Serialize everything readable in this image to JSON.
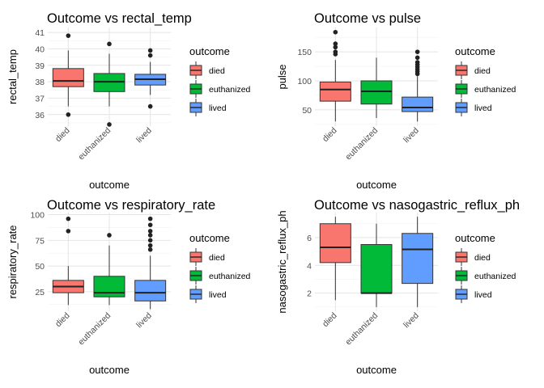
{
  "chart_data": [
    {
      "type": "boxplot",
      "title": "Outcome vs rectal_temp",
      "xlabel": "outcome",
      "ylabel": "rectal_temp",
      "categories": [
        "died",
        "euthanized",
        "lived"
      ],
      "ylim": [
        35.3,
        41.3
      ],
      "yticks": [
        36,
        37,
        38,
        39,
        40,
        41
      ],
      "legend_title": "outcome",
      "legend_placement": "right",
      "grid": true,
      "boxes": [
        {
          "category": "died",
          "lower_whisker": 36.5,
          "q1": 37.7,
          "median": 38.05,
          "q3": 38.8,
          "upper_whisker": 39.9,
          "outliers": [
            40.8,
            36.0
          ],
          "color": "#F8766D"
        },
        {
          "category": "euthanized",
          "lower_whisker": 36.5,
          "q1": 37.4,
          "median": 38.0,
          "q3": 38.5,
          "upper_whisker": 39.7,
          "outliers": [
            40.3,
            35.4
          ],
          "color": "#00BA38"
        },
        {
          "category": "lived",
          "lower_whisker": 37.2,
          "q1": 37.8,
          "median": 38.15,
          "q3": 38.45,
          "upper_whisker": 39.2,
          "outliers": [
            39.9,
            39.6,
            36.5
          ],
          "color": "#619CFF"
        }
      ]
    },
    {
      "type": "boxplot",
      "title": "Outcome vs pulse",
      "xlabel": "outcome",
      "ylabel": "pulse",
      "categories": [
        "died",
        "euthanized",
        "lived"
      ],
      "ylim": [
        22,
        192
      ],
      "yticks": [
        50,
        100,
        150
      ],
      "legend_title": "outcome",
      "legend_placement": "right",
      "grid": true,
      "boxes": [
        {
          "category": "died",
          "lower_whisker": 30,
          "q1": 65,
          "median": 85,
          "q3": 98,
          "upper_whisker": 136,
          "outliers": [
            184,
            164,
            158,
            150,
            146
          ],
          "color": "#F8766D"
        },
        {
          "category": "euthanized",
          "lower_whisker": 36,
          "q1": 60,
          "median": 82,
          "q3": 100,
          "upper_whisker": 140,
          "outliers": [],
          "color": "#00BA38"
        },
        {
          "category": "lived",
          "lower_whisker": 30,
          "q1": 47,
          "median": 54,
          "q3": 72,
          "upper_whisker": 108,
          "outliers": [
            150,
            140,
            132,
            128,
            124,
            120,
            116,
            112
          ],
          "color": "#619CFF"
        }
      ]
    },
    {
      "type": "boxplot",
      "title": "Outcome vs respiratory_rate",
      "xlabel": "outcome",
      "ylabel": "respiratory_rate",
      "categories": [
        "died",
        "euthanized",
        "lived"
      ],
      "ylim": [
        6,
        102
      ],
      "yticks": [
        25,
        50,
        75,
        100
      ],
      "legend_title": "outcome",
      "legend_placement": "right",
      "grid": true,
      "boxes": [
        {
          "category": "died",
          "lower_whisker": 12,
          "q1": 24,
          "median": 30,
          "q3": 36,
          "upper_whisker": 50,
          "outliers": [
            96,
            84
          ],
          "color": "#F8766D"
        },
        {
          "category": "euthanized",
          "lower_whisker": 12,
          "q1": 20,
          "median": 24,
          "q3": 40,
          "upper_whisker": 70,
          "outliers": [
            80
          ],
          "color": "#00BA38"
        },
        {
          "category": "lived",
          "lower_whisker": 8,
          "q1": 16,
          "median": 24,
          "q3": 36,
          "upper_whisker": 60,
          "outliers": [
            96,
            90,
            84,
            80,
            75,
            70,
            66
          ],
          "color": "#619CFF"
        }
      ]
    },
    {
      "type": "boxplot",
      "title": "Outcome vs nasogastric_reflux_ph",
      "xlabel": "outcome",
      "ylabel": "nasogastric_reflux_ph",
      "categories": [
        "died",
        "euthanized",
        "lived"
      ],
      "ylim": [
        0.7,
        7.8
      ],
      "yticks": [
        2,
        4,
        6
      ],
      "legend_title": "outcome",
      "legend_placement": "right",
      "grid": true,
      "boxes": [
        {
          "category": "died",
          "lower_whisker": 1.5,
          "q1": 4.2,
          "median": 5.3,
          "q3": 7.0,
          "upper_whisker": 7.5,
          "outliers": [],
          "color": "#F8766D"
        },
        {
          "category": "euthanized",
          "lower_whisker": 1.0,
          "q1": 2.0,
          "median": 2.0,
          "q3": 5.5,
          "upper_whisker": 7.0,
          "outliers": [],
          "color": "#00BA38"
        },
        {
          "category": "lived",
          "lower_whisker": 1.0,
          "q1": 2.7,
          "median": 5.15,
          "q3": 6.3,
          "upper_whisker": 7.5,
          "outliers": [],
          "color": "#619CFF"
        }
      ]
    }
  ]
}
